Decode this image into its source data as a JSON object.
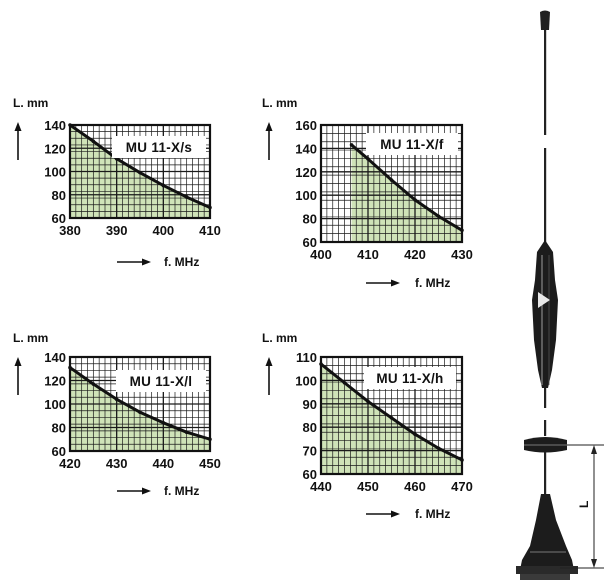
{
  "colors": {
    "fill": "#cfe3b8",
    "grid": "#1a1a1a",
    "curve": "#111111",
    "background": "#ffffff"
  },
  "chart_data": [
    {
      "type": "area",
      "title": "MU 11-X/s",
      "xlabel": "f. MHz",
      "ylabel": "L. mm",
      "xlim": [
        380,
        410
      ],
      "ylim": [
        60,
        140
      ],
      "xticks": [
        380,
        390,
        400,
        410
      ],
      "yticks": [
        60,
        80,
        100,
        120,
        140
      ],
      "x": [
        380,
        385,
        390,
        395,
        400,
        405,
        410
      ],
      "y": [
        140,
        126,
        111,
        99,
        88,
        78,
        69
      ]
    },
    {
      "type": "area",
      "title": "MU 11-X/f",
      "xlabel": "f. MHz",
      "ylabel": "L. mm",
      "xlim": [
        400,
        430
      ],
      "ylim": [
        60,
        160
      ],
      "xticks": [
        400,
        410,
        420,
        430
      ],
      "yticks": [
        60,
        80,
        100,
        120,
        140,
        160
      ],
      "x": [
        406.5,
        410,
        415,
        420,
        425,
        430
      ],
      "y": [
        143,
        131,
        113,
        96,
        82,
        70
      ]
    },
    {
      "type": "area",
      "title": "MU 11-X/l",
      "xlabel": "f. MHz",
      "ylabel": "L. mm",
      "xlim": [
        420,
        450
      ],
      "ylim": [
        60,
        140
      ],
      "xticks": [
        420,
        430,
        440,
        450
      ],
      "yticks": [
        60,
        80,
        100,
        120,
        140
      ],
      "x": [
        420,
        425,
        430,
        435,
        440,
        445,
        450
      ],
      "y": [
        131,
        117,
        104,
        93,
        84,
        76,
        70
      ]
    },
    {
      "type": "area",
      "title": "MU 11-X/h",
      "xlabel": "f. MHz",
      "ylabel": "L. mm",
      "xlim": [
        440,
        470
      ],
      "ylim": [
        60,
        110
      ],
      "xticks": [
        440,
        450,
        460,
        470
      ],
      "yticks": [
        60,
        70,
        80,
        90,
        100,
        110
      ],
      "x": [
        440,
        445,
        450,
        455,
        460,
        465,
        470
      ],
      "y": [
        107,
        99,
        91,
        84,
        77,
        71,
        66
      ]
    }
  ],
  "antenna": {
    "icon": "whip-antenna-drawing",
    "dimension_label": "L"
  }
}
